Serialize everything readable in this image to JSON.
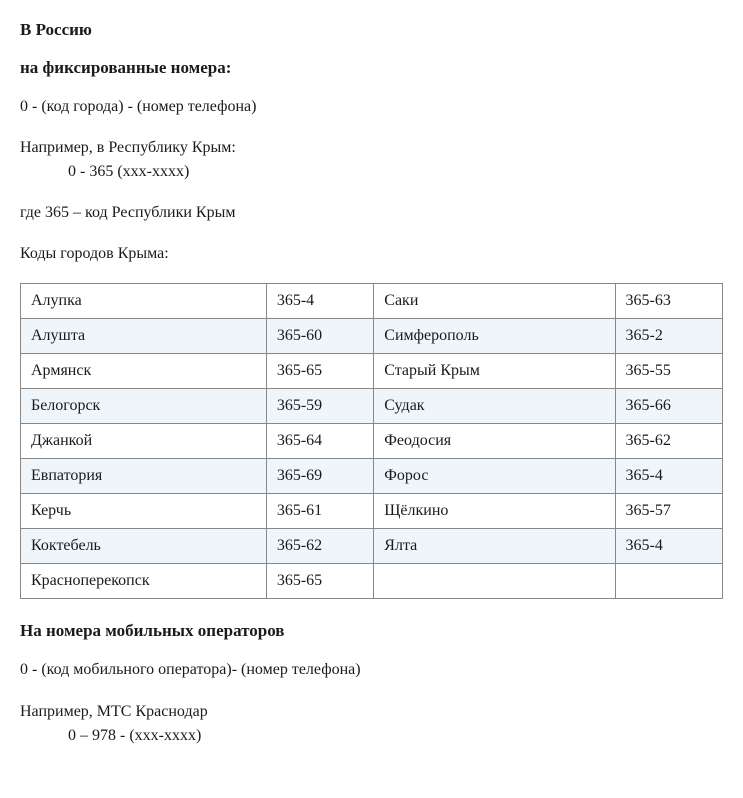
{
  "heading1": "В Россию",
  "subheading1": "на фиксированные номера:",
  "format_fixed": "0 - (код города) - (номер телефона)",
  "example_intro": "Например, в Республику Крым:",
  "example_line": "0 - 365 (ххх-хххх)",
  "where_line": "где 365 – код Республики Крым",
  "table_caption": "Коды городов Крыма:",
  "city_codes": {
    "rows": [
      {
        "city_l": "Алупка",
        "code_l": "365-4",
        "city_r": "Саки",
        "code_r": "365-63"
      },
      {
        "city_l": "Алушта",
        "code_l": "365-60",
        "city_r": "Симферополь",
        "code_r": "365-2"
      },
      {
        "city_l": "Армянск",
        "code_l": "365-65",
        "city_r": "Старый Крым",
        "code_r": "365-55"
      },
      {
        "city_l": "Белогорск",
        "code_l": "365-59",
        "city_r": "Судак",
        "code_r": "365-66"
      },
      {
        "city_l": "Джанкой",
        "code_l": "365-64",
        "city_r": "Феодосия",
        "code_r": "365-62"
      },
      {
        "city_l": "Евпатория",
        "code_l": "365-69",
        "city_r": "Форос",
        "code_r": "365-4"
      },
      {
        "city_l": "Керчь",
        "code_l": "365-61",
        "city_r": "Щёлкино",
        "code_r": "365-57"
      },
      {
        "city_l": "Коктебель",
        "code_l": "365-62",
        "city_r": "Ялта",
        "code_r": "365-4"
      },
      {
        "city_l": "Красноперекопск",
        "code_l": "365-65",
        "city_r": "",
        "code_r": ""
      }
    ],
    "alt_row_bg": "#eef5fb",
    "border_color": "#888888",
    "cell_fontsize": 16
  },
  "subheading2": "На номера мобильных операторов",
  "format_mobile": "0 - (код мобильного оператора)- (номер телефона)",
  "example2_intro": "Например, МТС Краснодар",
  "example2_line": "0 – 978 - (ххх-хххх)",
  "colors": {
    "text": "#1a1a1a",
    "background": "#ffffff"
  }
}
